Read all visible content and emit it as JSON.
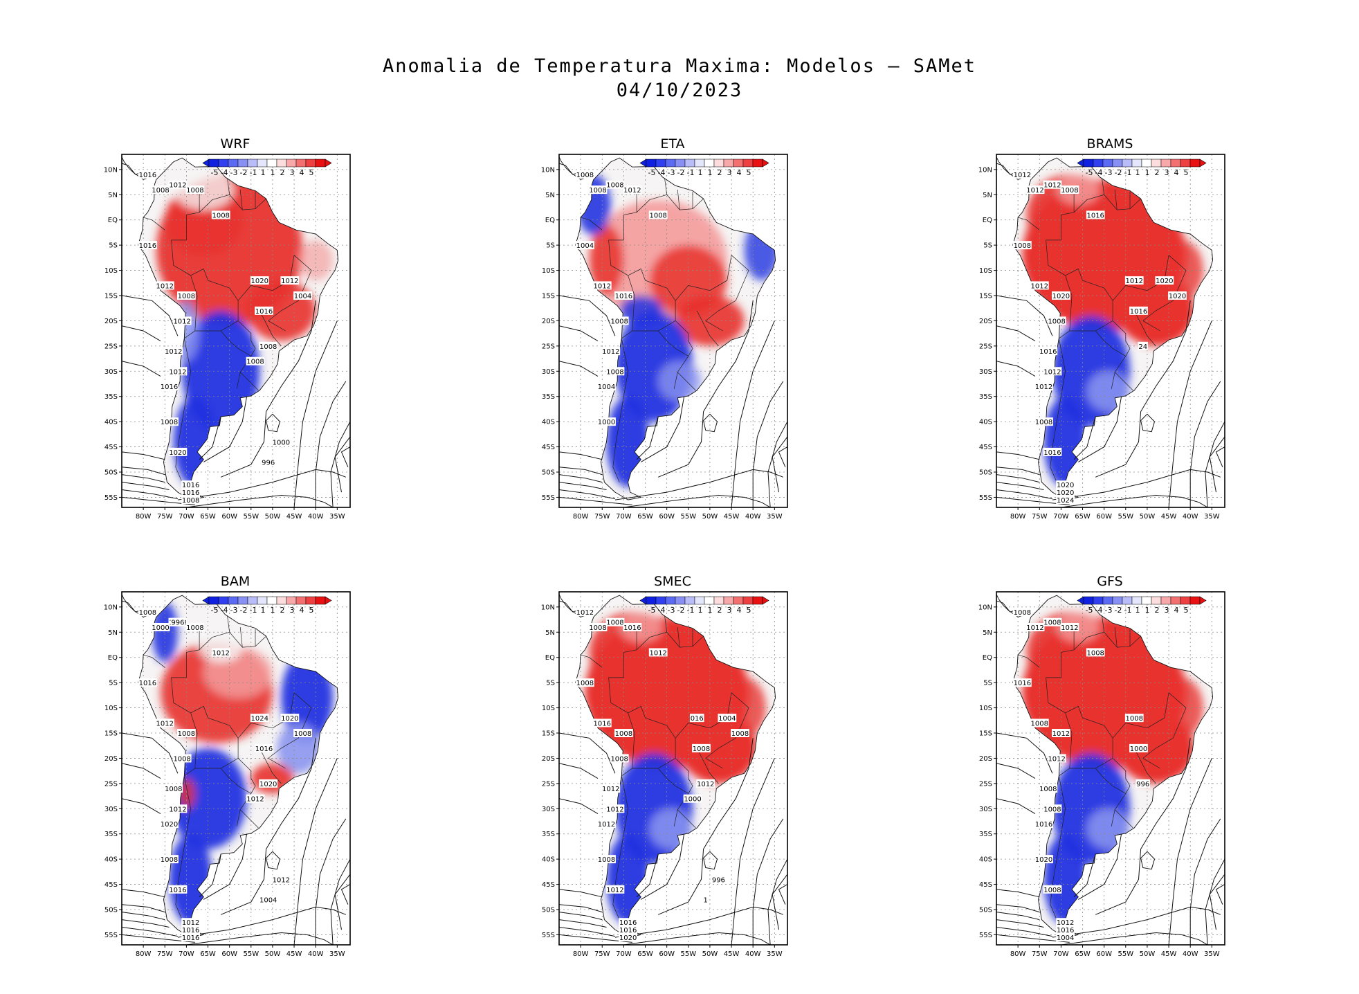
{
  "title": {
    "line1": "Anomalia de Temperatura Maxima: Modelos – SAMet",
    "line2": "04/10/2023"
  },
  "axes": {
    "lat_labels": [
      "10N",
      "5N",
      "EQ",
      "5S",
      "10S",
      "15S",
      "20S",
      "25S",
      "30S",
      "35S",
      "40S",
      "45S",
      "50S",
      "55S"
    ],
    "lon_labels": [
      "80W",
      "75W",
      "70W",
      "65W",
      "60W",
      "55W",
      "50W",
      "45W",
      "40W",
      "35W"
    ]
  },
  "colorbar": {
    "labels": [
      "-5",
      "-4",
      "-3",
      "-2",
      "-1",
      "1",
      "1",
      "2",
      "3",
      "4",
      "5"
    ],
    "colors": [
      "#1020e0",
      "#3040f0",
      "#5a6af2",
      "#8890f4",
      "#b8bcf8",
      "#e4e6fb",
      "#ffffff",
      "#fcdcdc",
      "#f8a8a8",
      "#f47070",
      "#ee4040",
      "#e81010"
    ]
  },
  "colors": {
    "warm": "#e8322e",
    "warm_light": "#f4a0a0",
    "cold": "#2233e0",
    "cold_light": "#8c96f0",
    "neutral": "#f6f4f4"
  },
  "panels": [
    {
      "model": "WRF",
      "pattern": "warm-north-cold-south",
      "isobars": [
        "1016",
        "1008",
        "1012",
        "1008",
        "1008",
        "1016",
        "1012",
        "1008",
        "1012",
        "1012",
        "1012",
        "1016",
        "1008",
        "1020",
        "1016",
        "1016",
        "1008",
        "1020",
        "1016",
        "1008",
        "1012",
        "1004",
        "1008",
        "1000",
        "996"
      ]
    },
    {
      "model": "ETA",
      "pattern": "mixed-north-cold-south",
      "isobars": [
        "1008",
        "1008",
        "1008",
        "1012",
        "1008",
        "1004",
        "1012",
        "1016",
        "1008",
        "1012",
        "1008",
        "1004",
        "1000"
      ]
    },
    {
      "model": "BRAMS",
      "pattern": "strong-warm-north-cold-south",
      "isobars": [
        "1012",
        "1012",
        "1012",
        "1008",
        "1016",
        "1008",
        "1012",
        "1020",
        "1008",
        "1016",
        "1012",
        "1012",
        "1008",
        "1016",
        "1020",
        "1020",
        "1024",
        "1012",
        "1016",
        "24",
        "1020",
        "1020"
      ]
    },
    {
      "model": "BAM",
      "pattern": "warm-west-cold-east-cold-south",
      "isobars": [
        "1008",
        "1008",
        "1008",
        "1008",
        "1012",
        "1016",
        "1012",
        "1008",
        "1008",
        "1008",
        "1012",
        "1020",
        "1008",
        "1016",
        "1012",
        "1016",
        "1016",
        "1024",
        "1016",
        "1020",
        "1020",
        "1008",
        "1012",
        "1012",
        "1004",
        "1008",
        "1000",
        "996"
      ]
    },
    {
      "model": "SMEC",
      "pattern": "strong-warm-north-cold-south",
      "isobars": [
        "1012",
        "1008",
        "1008",
        "1016",
        "1012",
        "1008",
        "1016",
        "1008",
        "1008",
        "1012",
        "1012",
        "1012",
        "1008",
        "1012",
        "1016",
        "1016",
        "1020",
        "016",
        "1008",
        "1012",
        "1004",
        "1008",
        "1000",
        "996",
        "1"
      ]
    },
    {
      "model": "GFS",
      "pattern": "strong-warm-north-cold-south",
      "isobars": [
        "1008",
        "1012",
        "1008",
        "1012",
        "1008",
        "1016",
        "1008",
        "1012",
        "1012",
        "1008",
        "1008",
        "1016",
        "1020",
        "1008",
        "1012",
        "1016",
        "1004",
        "1008",
        "1000",
        "996"
      ]
    }
  ]
}
